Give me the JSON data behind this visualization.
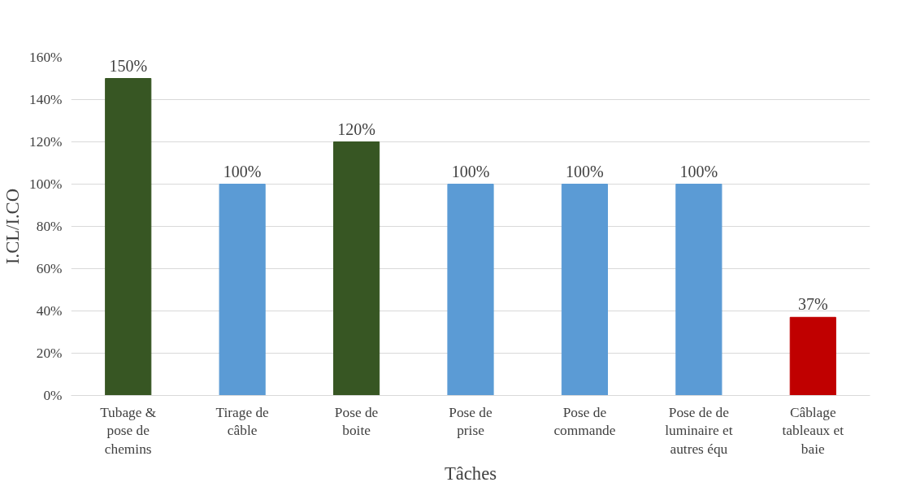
{
  "chart_data": {
    "type": "bar",
    "xlabel": "Tâches",
    "ylabel": "I.CL/I.CO",
    "categories": [
      "Tubage & pose de chemins",
      "Tirage de câble",
      "Pose de boite",
      "Pose de prise",
      "Pose de commande",
      "Pose de de luminaire et autres équ",
      "Câblage tableaux et baie"
    ],
    "values": [
      150,
      100,
      120,
      100,
      100,
      100,
      37
    ],
    "colors": [
      "#375623",
      "#5b9bd5",
      "#375623",
      "#5b9bd5",
      "#5b9bd5",
      "#5b9bd5",
      "#c00000"
    ],
    "value_labels": [
      "150%",
      "100%",
      "120%",
      "100%",
      "100%",
      "100%",
      "37%"
    ],
    "ylim": [
      0,
      160
    ],
    "yticks": [
      {
        "value": 0,
        "label": "0%"
      },
      {
        "value": 20,
        "label": "20%"
      },
      {
        "value": 40,
        "label": "40%"
      },
      {
        "value": 60,
        "label": "60%"
      },
      {
        "value": 80,
        "label": "80%"
      },
      {
        "value": 100,
        "label": "100%"
      },
      {
        "value": 120,
        "label": "120%"
      },
      {
        "value": 140,
        "label": "140%"
      },
      {
        "value": 160,
        "label": "160%"
      }
    ],
    "grid": "y"
  }
}
